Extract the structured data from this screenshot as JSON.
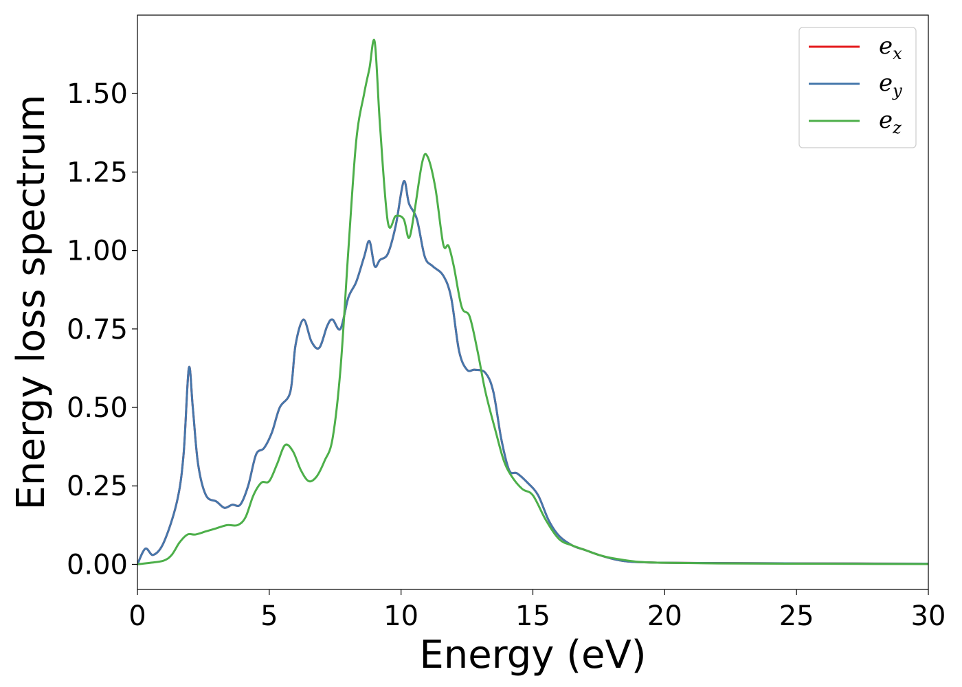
{
  "chart_data": {
    "type": "line",
    "title": "",
    "xlabel": "Energy (eV)",
    "ylabel": "Energy loss spectrum",
    "xlim": [
      0,
      30
    ],
    "ylim": [
      -0.08,
      1.75
    ],
    "xticks": [
      0,
      5,
      10,
      15,
      20,
      25,
      30
    ],
    "xtick_labels": [
      "0",
      "5",
      "10",
      "15",
      "20",
      "25",
      "30"
    ],
    "yticks": [
      0.0,
      0.25,
      0.5,
      0.75,
      1.0,
      1.25,
      1.5
    ],
    "ytick_labels": [
      "0.00",
      "0.25",
      "0.50",
      "0.75",
      "1.00",
      "1.25",
      "1.50"
    ],
    "grid": false,
    "legend_position": "top-right",
    "series": [
      {
        "name": "e_x",
        "legend_base": "e",
        "legend_sub": "x",
        "color": "#e41a1c",
        "x": [
          0,
          0.3,
          0.6,
          1.0,
          1.5,
          1.75,
          1.95,
          2.1,
          2.3,
          2.6,
          3.0,
          3.3,
          3.6,
          3.9,
          4.2,
          4.5,
          4.8,
          5.1,
          5.4,
          5.8,
          6.0,
          6.3,
          6.6,
          6.9,
          7.2,
          7.4,
          7.7,
          8.0,
          8.3,
          8.6,
          8.8,
          9.0,
          9.2,
          9.5,
          9.8,
          10.1,
          10.3,
          10.6,
          10.9,
          11.2,
          11.6,
          11.9,
          12.2,
          12.5,
          12.8,
          13.2,
          13.5,
          13.8,
          14.1,
          14.4,
          14.8,
          15.2,
          15.6,
          16.0,
          16.5,
          17.0,
          17.5,
          18.0,
          18.5,
          19.0,
          20.0,
          22.0,
          25.0,
          30.0
        ],
        "y": [
          0.0,
          0.05,
          0.03,
          0.07,
          0.2,
          0.35,
          0.625,
          0.5,
          0.32,
          0.22,
          0.2,
          0.18,
          0.19,
          0.19,
          0.25,
          0.35,
          0.37,
          0.42,
          0.5,
          0.55,
          0.7,
          0.78,
          0.71,
          0.69,
          0.76,
          0.78,
          0.75,
          0.85,
          0.9,
          0.98,
          1.03,
          0.95,
          0.97,
          0.99,
          1.08,
          1.22,
          1.15,
          1.1,
          0.98,
          0.95,
          0.92,
          0.85,
          0.68,
          0.62,
          0.62,
          0.61,
          0.55,
          0.4,
          0.3,
          0.29,
          0.26,
          0.22,
          0.14,
          0.09,
          0.06,
          0.045,
          0.03,
          0.018,
          0.01,
          0.007,
          0.005,
          0.004,
          0.003,
          0.002
        ]
      },
      {
        "name": "e_y",
        "legend_base": "e",
        "legend_sub": "y",
        "color": "#4577ab",
        "x": [
          0,
          0.3,
          0.6,
          1.0,
          1.5,
          1.75,
          1.95,
          2.1,
          2.3,
          2.6,
          3.0,
          3.3,
          3.6,
          3.9,
          4.2,
          4.5,
          4.8,
          5.1,
          5.4,
          5.8,
          6.0,
          6.3,
          6.6,
          6.9,
          7.2,
          7.4,
          7.7,
          8.0,
          8.3,
          8.6,
          8.8,
          9.0,
          9.2,
          9.5,
          9.8,
          10.1,
          10.3,
          10.6,
          10.9,
          11.2,
          11.6,
          11.9,
          12.2,
          12.5,
          12.8,
          13.2,
          13.5,
          13.8,
          14.1,
          14.4,
          14.8,
          15.2,
          15.6,
          16.0,
          16.5,
          17.0,
          17.5,
          18.0,
          18.5,
          19.0,
          20.0,
          22.0,
          25.0,
          30.0
        ],
        "y": [
          0.0,
          0.05,
          0.03,
          0.07,
          0.2,
          0.35,
          0.625,
          0.5,
          0.32,
          0.22,
          0.2,
          0.18,
          0.19,
          0.19,
          0.25,
          0.35,
          0.37,
          0.42,
          0.5,
          0.55,
          0.7,
          0.78,
          0.71,
          0.69,
          0.76,
          0.78,
          0.75,
          0.85,
          0.9,
          0.98,
          1.03,
          0.95,
          0.97,
          0.99,
          1.08,
          1.22,
          1.15,
          1.1,
          0.98,
          0.95,
          0.92,
          0.85,
          0.68,
          0.62,
          0.62,
          0.61,
          0.55,
          0.4,
          0.3,
          0.29,
          0.26,
          0.22,
          0.14,
          0.09,
          0.06,
          0.045,
          0.03,
          0.018,
          0.01,
          0.007,
          0.005,
          0.004,
          0.003,
          0.002
        ]
      },
      {
        "name": "e_z",
        "legend_base": "e",
        "legend_sub": "z",
        "color": "#4daf4a",
        "x": [
          0,
          0.5,
          1.0,
          1.3,
          1.6,
          1.9,
          2.2,
          2.6,
          3.0,
          3.4,
          3.8,
          4.1,
          4.4,
          4.7,
          5.0,
          5.3,
          5.6,
          5.9,
          6.2,
          6.5,
          6.8,
          7.1,
          7.4,
          7.7,
          8.0,
          8.3,
          8.6,
          8.8,
          9.0,
          9.2,
          9.5,
          9.8,
          10.1,
          10.3,
          10.5,
          10.8,
          11.0,
          11.3,
          11.6,
          11.8,
          12.0,
          12.3,
          12.6,
          12.9,
          13.2,
          13.6,
          13.9,
          14.2,
          14.6,
          15.0,
          15.5,
          16.0,
          16.5,
          17.0,
          17.5,
          18.0,
          19.0,
          20.0,
          22.0,
          25.0,
          30.0
        ],
        "y": [
          0.0,
          0.005,
          0.012,
          0.03,
          0.07,
          0.095,
          0.095,
          0.105,
          0.115,
          0.125,
          0.125,
          0.15,
          0.22,
          0.26,
          0.265,
          0.32,
          0.38,
          0.36,
          0.3,
          0.265,
          0.28,
          0.33,
          0.4,
          0.62,
          1.0,
          1.35,
          1.5,
          1.58,
          1.665,
          1.4,
          1.09,
          1.11,
          1.1,
          1.04,
          1.12,
          1.28,
          1.3,
          1.2,
          1.02,
          1.015,
          0.95,
          0.82,
          0.79,
          0.68,
          0.55,
          0.42,
          0.33,
          0.28,
          0.24,
          0.22,
          0.14,
          0.08,
          0.06,
          0.045,
          0.03,
          0.02,
          0.008,
          0.005,
          0.003,
          0.002,
          0.001
        ]
      }
    ]
  }
}
